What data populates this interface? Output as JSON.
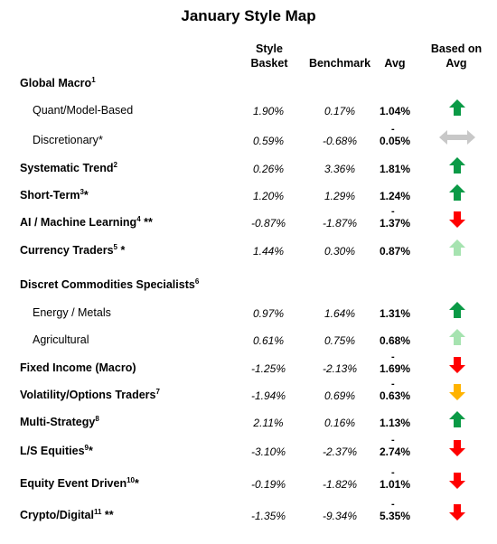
{
  "title": "January Style Map",
  "headers": {
    "basket": [
      "Style",
      "Basket"
    ],
    "benchmark": "Benchmark",
    "avg": "Avg",
    "based": [
      "Based on",
      "Avg"
    ]
  },
  "rows": [
    {
      "label": "Global Macro",
      "sup": "1",
      "suffix": "",
      "bold": true,
      "indent": false,
      "basket": "",
      "benchmark": "",
      "avg": "",
      "neg": false,
      "arrow": ""
    },
    {
      "label": "Quant/Model-Based",
      "sup": "",
      "suffix": "",
      "bold": false,
      "indent": true,
      "basket": "1.90%",
      "benchmark": "0.17%",
      "avg": "1.04%",
      "neg": false,
      "arrow": "up-green"
    },
    {
      "label": "Discretionary",
      "sup": "",
      "suffix": "*",
      "bold": false,
      "indent": true,
      "basket": "0.59%",
      "benchmark": "-0.68%",
      "avg": "0.05%",
      "neg": true,
      "arrow": "sideways-gray"
    },
    {
      "label": "Systematic Trend",
      "sup": "2",
      "suffix": "",
      "bold": true,
      "indent": false,
      "basket": "0.26%",
      "benchmark": "3.36%",
      "avg": "1.81%",
      "neg": false,
      "arrow": "up-green"
    },
    {
      "label": "Short-Term",
      "sup": "3",
      "suffix": "*",
      "bold": true,
      "indent": false,
      "basket": "1.20%",
      "benchmark": "1.29%",
      "avg": "1.24%",
      "neg": false,
      "arrow": "up-green"
    },
    {
      "label": "AI / Machine Learning",
      "sup": "4",
      "suffix": " **",
      "bold": true,
      "indent": false,
      "basket": "-0.87%",
      "benchmark": "-1.87%",
      "avg": "1.37%",
      "neg": true,
      "arrow": "down-red"
    },
    {
      "label": "Currency Traders",
      "sup": "5",
      "suffix": " *",
      "bold": true,
      "indent": false,
      "basket": "1.44%",
      "benchmark": "0.30%",
      "avg": "0.87%",
      "neg": false,
      "arrow": "up-lightgreen"
    },
    {
      "label": "Discret Commodities Specialists",
      "sup": "6",
      "suffix": "",
      "bold": true,
      "indent": false,
      "basket": "",
      "benchmark": "",
      "avg": "",
      "neg": false,
      "arrow": ""
    },
    {
      "label": "Energy / Metals",
      "sup": "",
      "suffix": "",
      "bold": false,
      "indent": true,
      "basket": "0.97%",
      "benchmark": "1.64%",
      "avg": "1.31%",
      "neg": false,
      "arrow": "up-green"
    },
    {
      "label": "Agricultural",
      "sup": "",
      "suffix": "",
      "bold": false,
      "indent": true,
      "basket": "0.61%",
      "benchmark": "0.75%",
      "avg": "0.68%",
      "neg": false,
      "arrow": "up-lightgreen"
    },
    {
      "label": "Fixed Income (Macro)",
      "sup": "",
      "suffix": "",
      "bold": true,
      "indent": false,
      "basket": "-1.25%",
      "benchmark": "-2.13%",
      "avg": "1.69%",
      "neg": true,
      "arrow": "down-red"
    },
    {
      "label": "Volatility/Options Traders",
      "sup": "7",
      "suffix": "",
      "bold": true,
      "indent": false,
      "basket": "-1.94%",
      "benchmark": "0.69%",
      "avg": "0.63%",
      "neg": true,
      "arrow": "down-orange"
    },
    {
      "label": "Multi-Strategy",
      "sup": "8",
      "suffix": "",
      "bold": true,
      "indent": false,
      "basket": "2.11%",
      "benchmark": "0.16%",
      "avg": "1.13%",
      "neg": false,
      "arrow": "up-green"
    },
    {
      "label": "L/S Equities",
      "sup": "9",
      "suffix": "*",
      "bold": true,
      "indent": false,
      "basket": "-3.10%",
      "benchmark": "-2.37%",
      "avg": "2.74%",
      "neg": true,
      "arrow": "down-red"
    },
    {
      "label": "Equity Event Driven",
      "sup": "10",
      "suffix": "*",
      "bold": true,
      "indent": false,
      "basket": "-0.19%",
      "benchmark": "-1.82%",
      "avg": "1.01%",
      "neg": true,
      "arrow": "down-red"
    },
    {
      "label": "Crypto/Digital",
      "sup": "11",
      "suffix": " **",
      "bold": true,
      "indent": false,
      "basket": "-1.35%",
      "benchmark": "-9.34%",
      "avg": "5.35%",
      "neg": true,
      "arrow": "down-red"
    }
  ],
  "colors": {
    "green": "#0a9a46",
    "lightgreen": "#a6e3b0",
    "red": "#ff0000",
    "orange": "#ffb300",
    "gray": "#c8c8c8"
  }
}
